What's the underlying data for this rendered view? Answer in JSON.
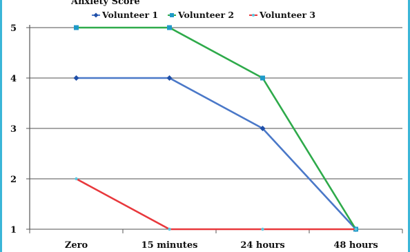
{
  "chart_data": {
    "type": "line",
    "title": "Anxiety Score",
    "categories": [
      "Zero",
      "15 minutes",
      "24 hours",
      "48 hours"
    ],
    "ylim": [
      1,
      5
    ],
    "yticks": [
      "1",
      "2",
      "3",
      "4",
      "5"
    ],
    "grid": true,
    "legend_position": "top",
    "series": [
      {
        "name": "Volunteer 1",
        "values": [
          4,
          4,
          3,
          1
        ],
        "color": "#4a78c8",
        "marker_color": "#1f4fa8"
      },
      {
        "name": "Volunteer 2",
        "values": [
          5,
          5,
          4,
          1
        ],
        "color": "#2eaa4a",
        "marker_color": "#1e9ac8"
      },
      {
        "name": "Volunteer 3",
        "values": [
          2,
          1,
          1,
          1
        ],
        "color": "#e8383c",
        "marker_color": "#5bc8e0"
      }
    ]
  }
}
